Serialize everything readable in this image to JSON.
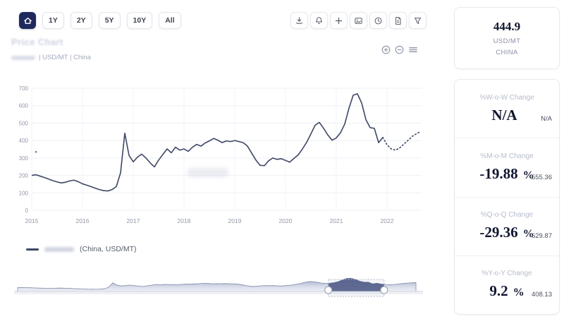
{
  "header": {
    "home_icon": "home-icon",
    "ranges": [
      "1Y",
      "2Y",
      "5Y",
      "10Y",
      "All"
    ],
    "tool_icons": [
      "download-icon",
      "bell-icon",
      "plus-icon",
      "image-icon",
      "clock-icon",
      "file-icon",
      "filter-icon"
    ]
  },
  "chart": {
    "title_blurred": "Price Chart",
    "subtitle": "| USD/MT | China",
    "controls": [
      "zoom-in-icon",
      "zoom-out-icon",
      "menu-icon"
    ],
    "legend_label": "(China, USD/MT)"
  },
  "chart_data": {
    "type": "line",
    "title": "Price Chart",
    "xlabel": "",
    "ylabel": "",
    "ylim": [
      0,
      700
    ],
    "y_ticks": [
      700,
      600,
      500,
      400,
      300,
      200,
      100,
      0
    ],
    "x_ticks": [
      "2015",
      "2016",
      "2017",
      "2018",
      "2019",
      "2020",
      "2021",
      "2022"
    ],
    "grid": true,
    "legend_position": "bottom-left",
    "line_color": "#3e4765",
    "series": [
      {
        "name": "historical",
        "style": "solid",
        "start": "2015-01",
        "interval": "monthly",
        "values": [
          200,
          204,
          196,
          188,
          179,
          170,
          163,
          157,
          161,
          169,
          173,
          164,
          152,
          144,
          136,
          127,
          119,
          113,
          111,
          119,
          136,
          215,
          442,
          315,
          278,
          305,
          322,
          300,
          272,
          249,
          288,
          320,
          352,
          330,
          362,
          345,
          352,
          338,
          362,
          378,
          368,
          386,
          398,
          412,
          402,
          388,
          398,
          394,
          400,
          394,
          388,
          368,
          328,
          288,
          258,
          256,
          284,
          300,
          292,
          296,
          286,
          276,
          298,
          318,
          352,
          390,
          438,
          488,
          504,
          470,
          432,
          402,
          415,
          445,
          495,
          585,
          660,
          668,
          615,
          520,
          474,
          470,
          388,
          418
        ]
      },
      {
        "name": "forecast",
        "style": "dotted",
        "start": "2022-01",
        "interval": "monthly",
        "values": [
          375,
          352,
          345,
          358,
          380,
          402,
          425,
          440,
          452
        ]
      }
    ],
    "stray_marker": {
      "month_index": 1,
      "value": 335
    },
    "navigator": {
      "start_frac": 0.78,
      "end_frac": 0.92
    }
  },
  "stats": {
    "current": {
      "value": "444.9",
      "unit": "USD/MT",
      "region": "CHINA"
    },
    "sections": [
      {
        "label": "%W-o-W Change",
        "value": "N/A",
        "unit": "",
        "side": "N/A"
      },
      {
        "label": "%M-o-M Change",
        "value": "-19.88",
        "unit": "%",
        "side": "555.36"
      },
      {
        "label": "%Q-o-Q Change",
        "value": "-29.36",
        "unit": "%",
        "side": "629.87"
      },
      {
        "label": "%Y-o-Y Change",
        "value": "9.2",
        "unit": "%",
        "side": "408.13"
      }
    ]
  },
  "colors": {
    "accent_navy": "#20295c",
    "line": "#3e4765",
    "value_text": "#10162e",
    "label_gray": "#b6bccb",
    "grid": "#eef0f6"
  }
}
